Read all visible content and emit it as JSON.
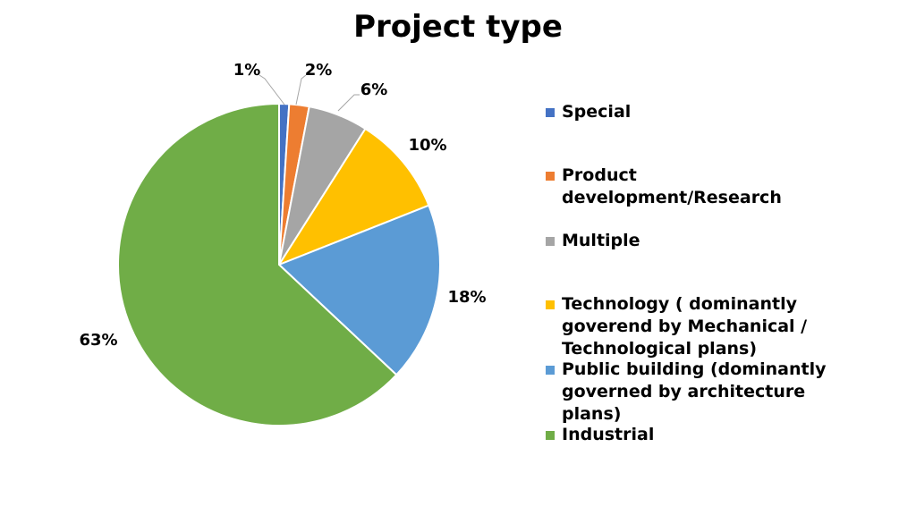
{
  "chart_data": {
    "type": "pie",
    "title": "Project type",
    "slices": [
      {
        "label": "Special",
        "value": 1,
        "value_label": "1%",
        "color": "#4472C4"
      },
      {
        "label": "Product development/Research",
        "value": 2,
        "value_label": "2%",
        "color": "#ED7D31"
      },
      {
        "label": "Multiple",
        "value": 6,
        "value_label": "6%",
        "color": "#A5A5A5"
      },
      {
        "label": "Technology ( dominantly goverend by Mechanical / Technological plans)",
        "value": 10,
        "value_label": "10%",
        "color": "#FFC000"
      },
      {
        "label": "Public building (dominantly governed by architecture plans)",
        "value": 18,
        "value_label": "18%",
        "color": "#5B9BD5"
      },
      {
        "label": "Industrial",
        "value": 63,
        "value_label": "63%",
        "color": "#70AD47"
      }
    ],
    "legend_position": "right"
  }
}
